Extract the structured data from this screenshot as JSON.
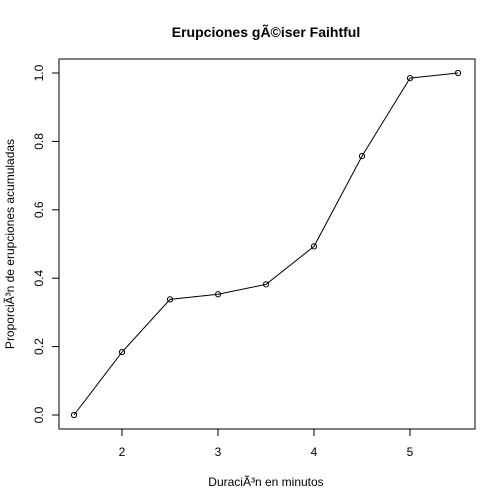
{
  "chart_data": {
    "type": "line",
    "title": "Erupciones gÃ©iser Faihtful",
    "xlabel": "DuraciÃ³n en minutos",
    "ylabel": "ProporciÃ³n de erupciones acumuladas",
    "x": [
      1.5,
      2.0,
      2.5,
      3.0,
      3.5,
      4.0,
      4.5,
      5.0,
      5.5
    ],
    "y": [
      0.0,
      0.184,
      0.338,
      0.353,
      0.382,
      0.493,
      0.757,
      0.985,
      1.0
    ],
    "xlim": [
      1.5,
      5.5
    ],
    "ylim": [
      0.0,
      1.0
    ],
    "x_ticks": [
      2,
      3,
      4,
      5
    ],
    "y_ticks": [
      0.0,
      0.2,
      0.4,
      0.6,
      0.8,
      1.0
    ],
    "x_tick_labels": [
      "2",
      "3",
      "4",
      "5"
    ],
    "y_tick_labels": [
      "0.0",
      "0.2",
      "0.4",
      "0.6",
      "0.8",
      "1.0"
    ],
    "markers": "open-circle",
    "grid": false,
    "legend": "none"
  }
}
